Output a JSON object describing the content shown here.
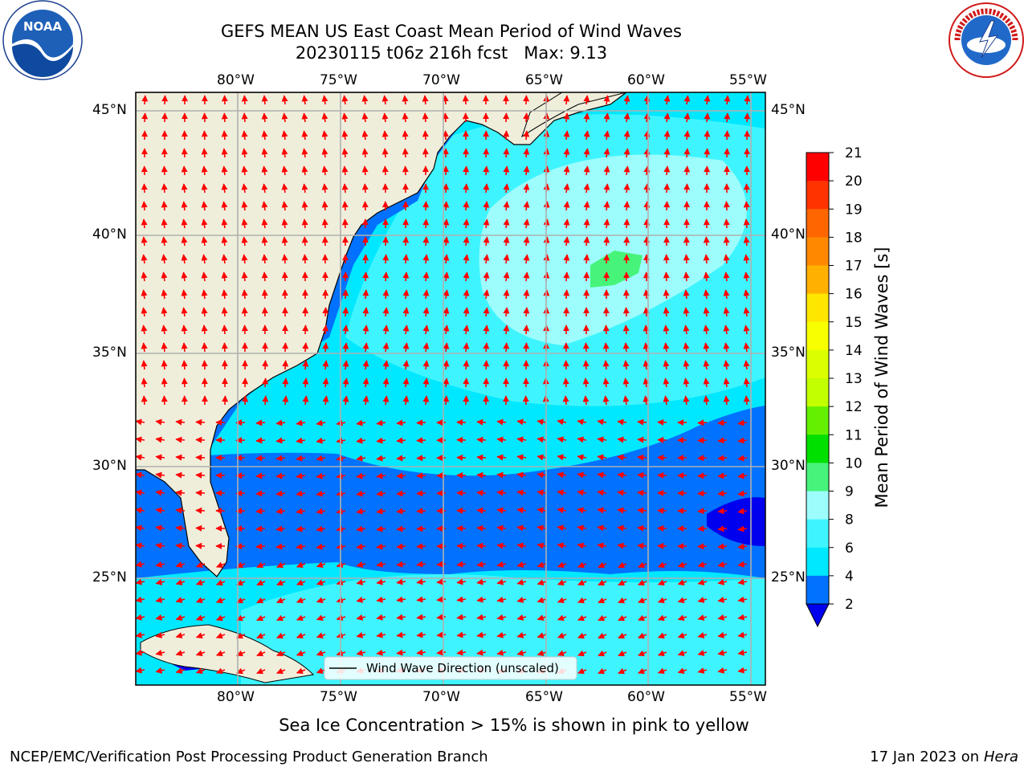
{
  "header": {
    "title_line1": "GEFS MEAN US East Coast Mean Period of Wind Waves",
    "title_line2": "20230115 t06z 216h fcst   Max: 9.13",
    "left_logo_text": "NOAA",
    "left_logo_ring": "NATIONAL OCEANIC AND ATMOSPHERIC ADMINISTRATION · U.S. DEPARTMENT OF COMMERCE",
    "right_logo_ring": "NATIONAL WEATHER SERVICE"
  },
  "map": {
    "lon_labels": [
      "80°W",
      "75°W",
      "70°W",
      "65°W",
      "60°W",
      "55°W"
    ],
    "lat_labels": [
      "45°N",
      "40°N",
      "35°N",
      "30°N",
      "25°N"
    ],
    "legend_label": "Wind Wave Direction (unscaled)",
    "colors": {
      "land": "#efeedb",
      "ocean_low": "#0072ff",
      "ocean_mid": "#00e8ff",
      "ocean_mid2": "#3ef5ff",
      "ocean_high": "#9cfdfc",
      "arrow": "#ff0000",
      "grid": "#b0b0b0"
    }
  },
  "colorbar": {
    "label": "Mean Period of Wind Waves [s]",
    "ticks": [
      "21",
      "20",
      "19",
      "18",
      "17",
      "16",
      "15",
      "14",
      "13",
      "12",
      "11",
      "10",
      "9",
      "8",
      "6",
      "4",
      "2"
    ],
    "colors": [
      "#ff0000",
      "#ff3300",
      "#ff6600",
      "#ff8800",
      "#ffb000",
      "#ffe600",
      "#f8ff00",
      "#dcff00",
      "#c2ff00",
      "#64f000",
      "#00e000",
      "#46f47a",
      "#9cfdfc",
      "#3ef5ff",
      "#00e8ff",
      "#0072ff"
    ],
    "under_color": "#0000ee"
  },
  "notes": {
    "sea_ice": "Sea Ice Concentration > 15% is shown in pink to yellow",
    "left_footer": "NCEP/EMC/Verification Post Processing Product Generation Branch",
    "right_footer_date": "17 Jan 2023 on ",
    "right_footer_host": "Hera"
  }
}
